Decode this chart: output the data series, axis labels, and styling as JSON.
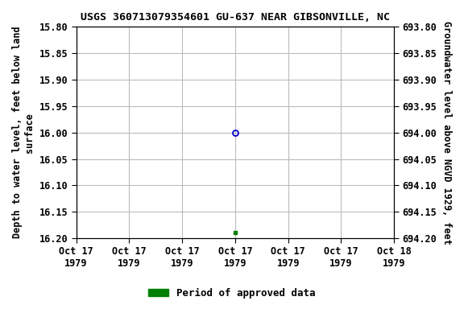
{
  "title": "USGS 360713079354601 GU-637 NEAR GIBSONVILLE, NC",
  "ylabel_left": "Depth to water level, feet below land\nsurface",
  "ylabel_right": "Groundwater level above NGVD 1929, feet",
  "ylim_left": [
    15.8,
    16.2
  ],
  "ylim_right": [
    694.2,
    693.8
  ],
  "yticks_left": [
    15.8,
    15.85,
    15.9,
    15.95,
    16.0,
    16.05,
    16.1,
    16.15,
    16.2
  ],
  "yticks_right": [
    694.2,
    694.15,
    694.1,
    694.05,
    694.0,
    693.95,
    693.9,
    693.85,
    693.8
  ],
  "x_ticks": [
    0,
    4,
    8,
    12,
    16,
    20,
    24
  ],
  "x_tick_labels": [
    "Oct 17\n1979",
    "Oct 17\n1979",
    "Oct 17\n1979",
    "Oct 17\n1979",
    "Oct 17\n1979",
    "Oct 17\n1979",
    "Oct 18\n1979"
  ],
  "xlim": [
    0,
    24
  ],
  "point_open_x": 12,
  "point_open_y": 16.0,
  "point_filled_x": 12,
  "point_filled_y": 16.19,
  "point_open_color": "#0000cc",
  "point_filled_color": "#008000",
  "grid_color": "#bbbbbb",
  "background_color": "#ffffff",
  "legend_label": "Period of approved data",
  "legend_color": "#008000",
  "title_fontsize": 9.5,
  "axis_label_fontsize": 8.5,
  "tick_fontsize": 8.5,
  "legend_fontsize": 9
}
